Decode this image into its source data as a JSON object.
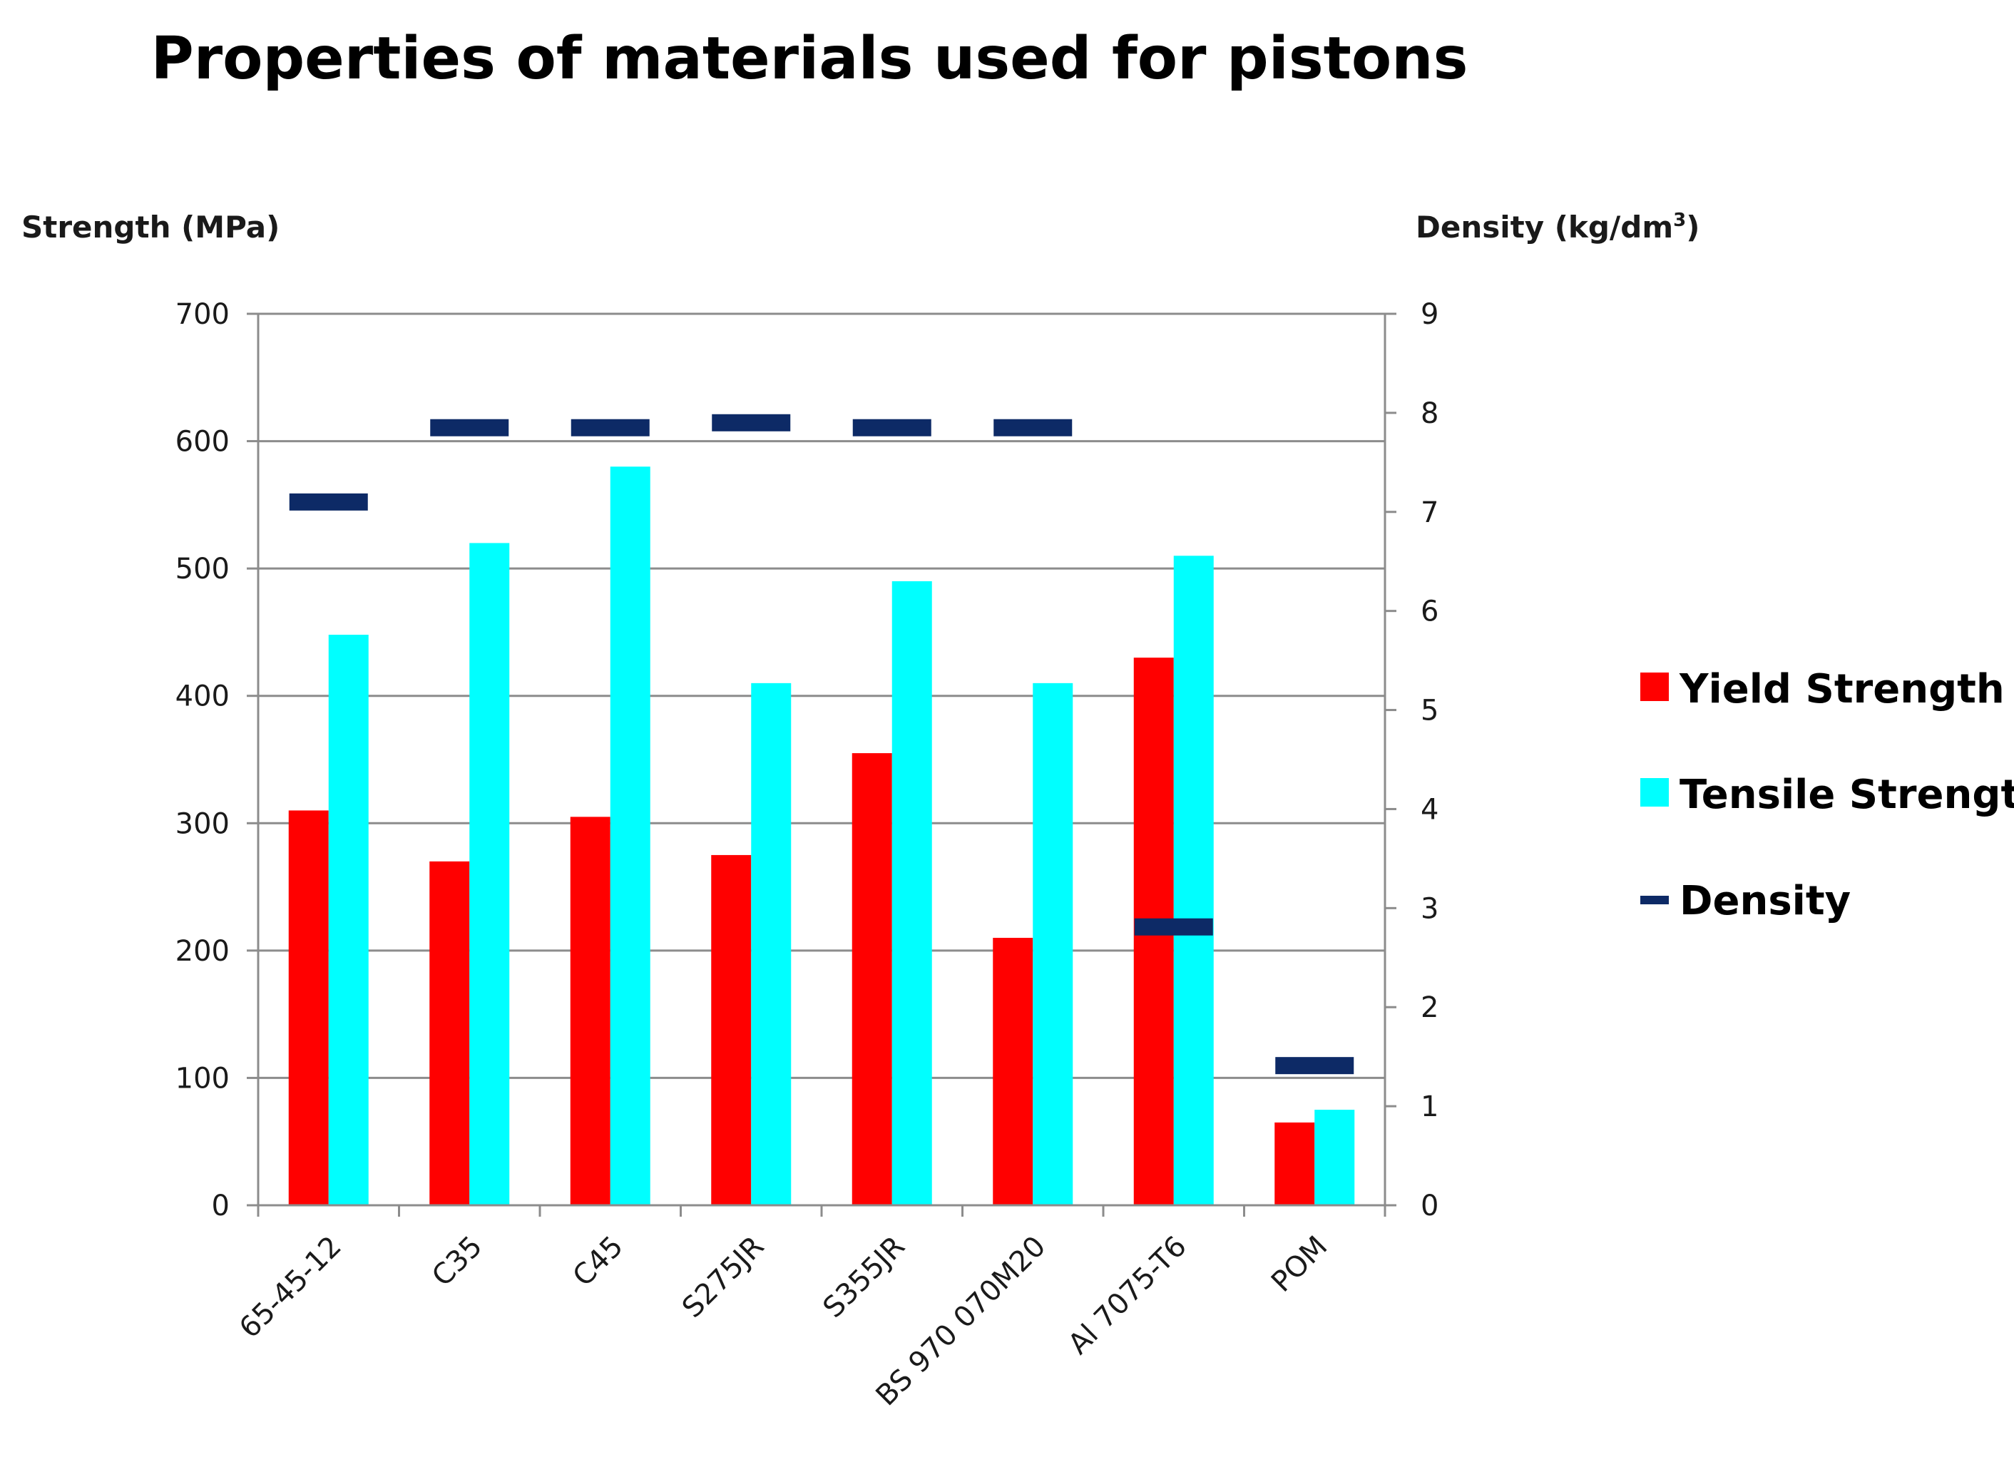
{
  "chart_data": {
    "type": "bar",
    "title": "Properties of materials used for pistons",
    "ylabel": "Strength (MPa)",
    "y2label_main": "Density (kg/dm",
    "y2label_sup": "3",
    "y2label_close": ")",
    "ylim": [
      0,
      700
    ],
    "y2lim": [
      0,
      9
    ],
    "yticks": [
      "0",
      "100",
      "200",
      "300",
      "400",
      "500",
      "600",
      "700"
    ],
    "y2ticks": [
      "0",
      "1",
      "2",
      "3",
      "4",
      "5",
      "6",
      "7",
      "8",
      "9"
    ],
    "categories": [
      "65-45-12",
      "C35",
      "C45",
      "S275JR",
      "S355JR",
      "BS 970 070M20",
      "Al 7075-T6",
      "POM"
    ],
    "series": [
      {
        "name": "Yield Strength",
        "type": "bar",
        "axis": "left",
        "color": "#ff0000",
        "values": [
          310,
          270,
          305,
          275,
          355,
          210,
          430,
          65
        ]
      },
      {
        "name": "Tensile Strength",
        "type": "bar",
        "axis": "left",
        "color": "#00ffff",
        "values": [
          448,
          520,
          580,
          410,
          490,
          410,
          510,
          75
        ]
      },
      {
        "name": "Density",
        "type": "marker",
        "axis": "right",
        "color": "#0d2a66",
        "values": [
          7.1,
          7.85,
          7.85,
          7.9,
          7.85,
          7.85,
          2.81,
          1.41
        ]
      }
    ],
    "legend_position": "right",
    "grid": true
  }
}
